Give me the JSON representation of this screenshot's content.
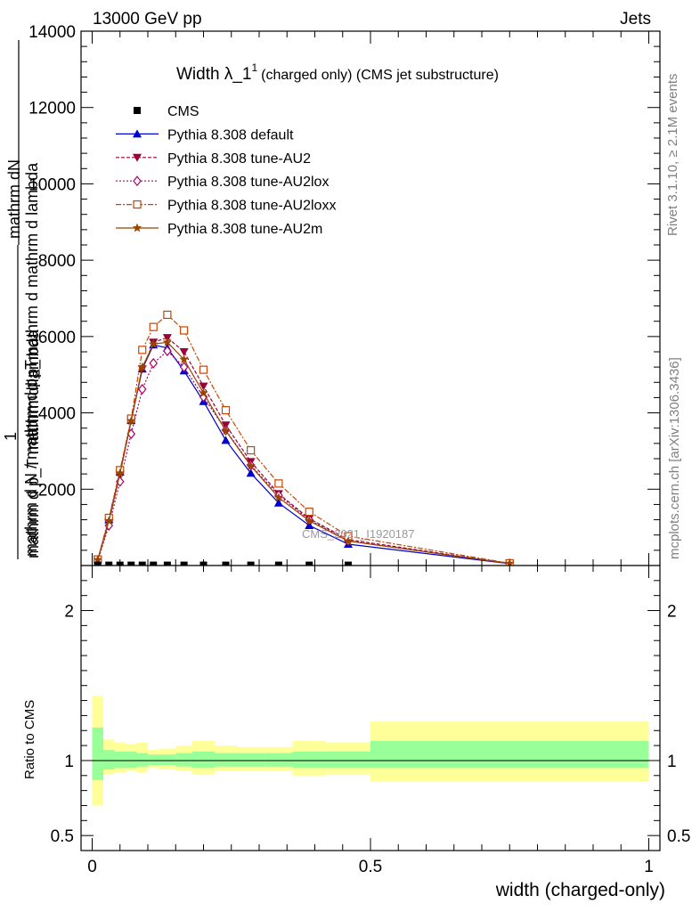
{
  "header": {
    "left": "13000 GeV pp",
    "right": "Jets"
  },
  "title": {
    "main": "Width λ_1",
    "sup": "1",
    "suffix": "(charged only) (CMS jet substructure)"
  },
  "side_labels": {
    "rivet": "Rivet 3.1.10, ≥ 2.1M events",
    "mcplots": "mcplots.cern.ch [arXiv:1306.3436]"
  },
  "watermark": "CMS_2021_I1920187",
  "main_ylabel_lines": [
    "mathrm dN",
    "mathrm d p_mathrm d mathrm d lambda",
    "mathrm d p_T mathrm d lambda",
    "mathrm d N / mathrm d p_T"
  ],
  "main_ylabel_one": "1",
  "ratio_ylabel": "Ratio to CMS",
  "xlabel": "width (charged-only)",
  "colors": {
    "cms": "#000000",
    "default": "#0000cc",
    "au2": "#990033",
    "au2lox": "#aa0066",
    "au2loxx": "#cc4400",
    "au2m": "#994400",
    "band_stat": "#99ff99",
    "band_tot": "#ffff99"
  },
  "chart_data": [
    {
      "type": "line",
      "panel": "main",
      "xlim": [
        -0.02,
        1.02
      ],
      "ylim": [
        0,
        14000
      ],
      "y_ticks": [
        2000,
        4000,
        6000,
        8000,
        10000,
        12000,
        14000
      ],
      "y_tick_labels": [
        "2000",
        "4000",
        "6000",
        "8000",
        "10000",
        "12000",
        "14000"
      ],
      "x": [
        0.01,
        0.03,
        0.05,
        0.07,
        0.09,
        0.11,
        0.135,
        0.165,
        0.2,
        0.24,
        0.285,
        0.335,
        0.39,
        0.46,
        0.75
      ],
      "cms_x": [
        0.01,
        0.03,
        0.05,
        0.07,
        0.09,
        0.11,
        0.135,
        0.165,
        0.2,
        0.24,
        0.285,
        0.335,
        0.39,
        0.46
      ],
      "cms_values": [
        10,
        10,
        10,
        10,
        10,
        10,
        10,
        10,
        10,
        10,
        10,
        10,
        10,
        10
      ],
      "series": [
        {
          "name": "CMS",
          "key": "cms",
          "marker": "square",
          "dash": ""
        },
        {
          "name": "Pythia 8.308 default",
          "key": "default",
          "marker": "triangle-up",
          "dash": "",
          "values": [
            150,
            1200,
            2450,
            3800,
            5150,
            5780,
            5700,
            5100,
            4300,
            3280,
            2420,
            1640,
            1050,
            560,
            50
          ]
        },
        {
          "name": "Pythia 8.308 tune-AU2",
          "key": "au2",
          "marker": "triangle-down",
          "dash": "4,2",
          "values": [
            150,
            1150,
            2400,
            3800,
            5150,
            5850,
            5970,
            5600,
            4700,
            3680,
            2720,
            1880,
            1230,
            680,
            55
          ]
        },
        {
          "name": "Pythia 8.308 tune-AU2lox",
          "key": "au2lox",
          "marker": "diamond-open",
          "dash": "2,2",
          "values": [
            130,
            1050,
            2200,
            3450,
            4620,
            5300,
            5620,
            5200,
            4420,
            3550,
            2630,
            1840,
            1200,
            650,
            50
          ]
        },
        {
          "name": "Pythia 8.308 tune-AU2loxx",
          "key": "au2loxx",
          "marker": "square-open",
          "dash": "6,2,2,2",
          "values": [
            160,
            1250,
            2500,
            3850,
            5650,
            6250,
            6570,
            6160,
            5130,
            4070,
            3020,
            2150,
            1410,
            770,
            60
          ]
        },
        {
          "name": "Pythia 8.308 tune-AU2m",
          "key": "au2m",
          "marker": "star",
          "dash": "",
          "values": [
            150,
            1170,
            2420,
            3790,
            5200,
            5800,
            5850,
            5400,
            4520,
            3530,
            2610,
            1780,
            1170,
            640,
            55
          ]
        }
      ]
    },
    {
      "type": "area",
      "panel": "ratio",
      "xlim": [
        -0.02,
        1.02
      ],
      "ylim": [
        0.4,
        2.3
      ],
      "y_ticks": [
        0.5,
        1,
        2
      ],
      "y_tick_labels": [
        "0.5",
        "1",
        "2"
      ],
      "x_ticks": [
        0,
        0.5,
        1
      ],
      "x_tick_labels": [
        "0",
        "0.5",
        "1"
      ],
      "bin_edges": [
        0,
        0.02,
        0.04,
        0.06,
        0.08,
        0.1,
        0.12,
        0.15,
        0.18,
        0.22,
        0.26,
        0.31,
        0.36,
        0.42,
        0.5,
        1.0
      ],
      "stat_band": [
        [
          0.87,
          1.22
        ],
        [
          0.94,
          1.07
        ],
        [
          0.95,
          1.06
        ],
        [
          0.95,
          1.06
        ],
        [
          0.96,
          1.05
        ],
        [
          0.97,
          1.04
        ],
        [
          0.97,
          1.04
        ],
        [
          0.96,
          1.05
        ],
        [
          0.95,
          1.06
        ],
        [
          0.96,
          1.05
        ],
        [
          0.96,
          1.05
        ],
        [
          0.96,
          1.05
        ],
        [
          0.95,
          1.06
        ],
        [
          0.95,
          1.06
        ],
        [
          0.95,
          1.13
        ]
      ],
      "total_band": [
        [
          0.7,
          1.43
        ],
        [
          0.91,
          1.14
        ],
        [
          0.92,
          1.12
        ],
        [
          0.93,
          1.11
        ],
        [
          0.92,
          1.12
        ],
        [
          0.95,
          1.07
        ],
        [
          0.94,
          1.08
        ],
        [
          0.93,
          1.1
        ],
        [
          0.91,
          1.13
        ],
        [
          0.93,
          1.1
        ],
        [
          0.93,
          1.09
        ],
        [
          0.93,
          1.09
        ],
        [
          0.9,
          1.13
        ],
        [
          0.91,
          1.12
        ],
        [
          0.86,
          1.26
        ]
      ]
    }
  ]
}
